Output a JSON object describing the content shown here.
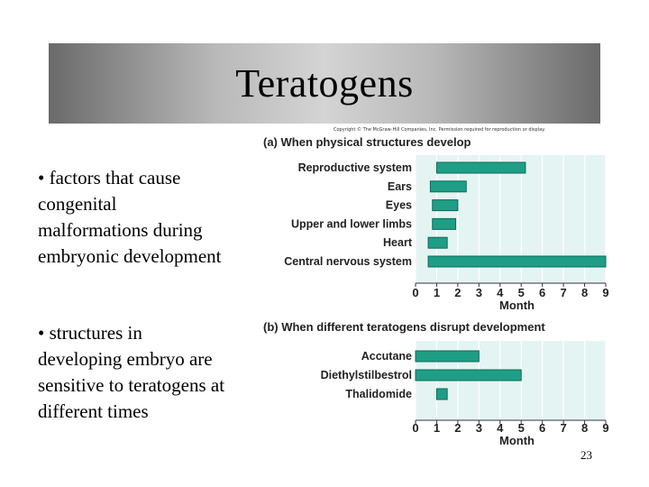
{
  "slide": {
    "title": "Teratogens",
    "bullets": [
      "• factors that cause congenital malformations during embryonic development",
      "• structures in developing embryo are sensitive to teratogens at different times"
    ],
    "slide_number": "23",
    "copyright": "Copyright © The McGraw-Hill Companies, Inc. Permission required for reproduction or display."
  },
  "colors": {
    "bar_fill": "#1f9e86",
    "bar_stroke": "#0e6b58",
    "plot_bg": "#e4f4f3"
  },
  "chart_data": [
    {
      "type": "bar",
      "orientation": "horizontal",
      "title": "(a) When physical structures develop",
      "xlabel": "Month",
      "xlim": [
        0,
        9
      ],
      "xticks": [
        "0",
        "1",
        "2",
        "3",
        "4",
        "5",
        "6",
        "7",
        "8",
        "9"
      ],
      "series": [
        {
          "values": [
            {
              "label": "Reproductive system",
              "start": 1.0,
              "end": 5.2
            },
            {
              "label": "Ears",
              "start": 0.7,
              "end": 2.4
            },
            {
              "label": "Eyes",
              "start": 0.8,
              "end": 2.0
            },
            {
              "label": "Upper and lower limbs",
              "start": 0.8,
              "end": 1.9
            },
            {
              "label": "Heart",
              "start": 0.6,
              "end": 1.5
            },
            {
              "label": "Central nervous system",
              "start": 0.6,
              "end": 9.0
            }
          ]
        }
      ]
    },
    {
      "type": "bar",
      "orientation": "horizontal",
      "title": "(b) When different teratogens disrupt development",
      "xlabel": "Month",
      "xlim": [
        0,
        9
      ],
      "xticks": [
        "0",
        "1",
        "2",
        "3",
        "4",
        "5",
        "6",
        "7",
        "8",
        "9"
      ],
      "series": [
        {
          "values": [
            {
              "label": "Accutane",
              "start": 0.0,
              "end": 3.0
            },
            {
              "label": "Diethylstilbestrol",
              "start": 0.0,
              "end": 5.0
            },
            {
              "label": "Thalidomide",
              "start": 1.0,
              "end": 1.5
            }
          ]
        }
      ]
    }
  ]
}
